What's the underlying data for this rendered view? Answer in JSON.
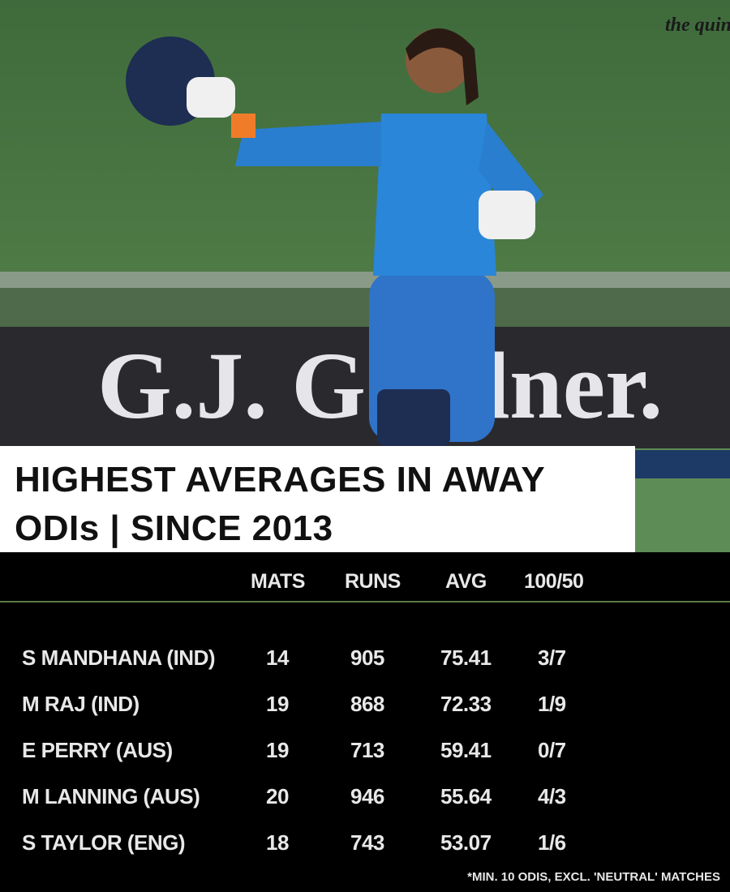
{
  "logo": "the quint",
  "banner": "G.J. Gardner.",
  "title": "HIGHEST AVERAGES IN AWAY ODIs | SINCE 2013",
  "table": {
    "columns": [
      "MATS",
      "RUNS",
      "AVG",
      "100/50"
    ],
    "rows": [
      [
        "S MANDHANA (IND)",
        14,
        905,
        75.41,
        "3/7"
      ],
      [
        "M RAJ (IND)",
        19,
        868,
        72.33,
        "1/9"
      ],
      [
        "E PERRY (AUS)",
        19,
        713,
        59.41,
        "0/7"
      ],
      [
        "M LANNING (AUS)",
        20,
        946,
        55.64,
        "4/3"
      ],
      [
        "S TAYLOR (ENG)",
        18,
        743,
        53.07,
        "1/6"
      ]
    ]
  },
  "footnote": "*MIN. 10 ODIS, EXCL. 'NEUTRAL' MATCHES"
}
